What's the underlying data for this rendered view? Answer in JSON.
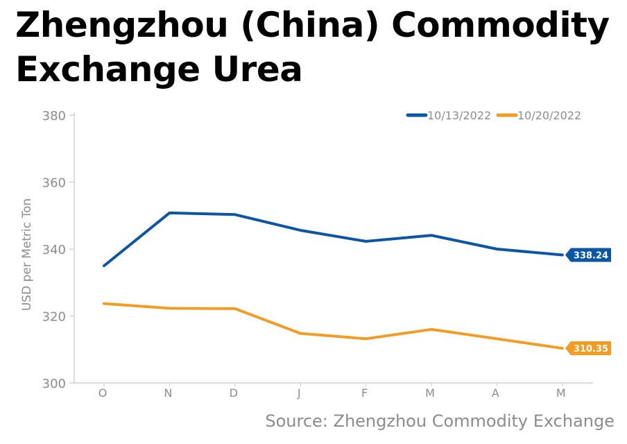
{
  "title": "Zhengzhou (China) Commodity Exchange Urea",
  "source": "Source: Zhengzhou Commodity Exchange",
  "colors": {
    "series1": "#0b56a4",
    "series2": "#f39c24",
    "axis": "#c8c8c8",
    "tick_text": "#8c8c8c"
  },
  "chart_data": {
    "type": "line",
    "title": "Zhengzhou (China) Commodity Exchange Urea",
    "xlabel": "",
    "ylabel": "USD per Metric Ton",
    "ylim": [
      300,
      380
    ],
    "yticks": [
      300,
      320,
      340,
      360,
      380
    ],
    "categories": [
      "O",
      "N",
      "D",
      "J",
      "F",
      "M",
      "A",
      "M"
    ],
    "grid": false,
    "legend_position": "top-right",
    "series": [
      {
        "name": "10/13/2022",
        "color": "#0b56a4",
        "values": [
          335,
          350.8,
          350.3,
          345.6,
          342.3,
          344.1,
          340.0,
          338.24
        ],
        "end_label": "338.24"
      },
      {
        "name": "10/20/2022",
        "color": "#f39c24",
        "values": [
          323.7,
          322.3,
          322.2,
          314.8,
          313.2,
          316.0,
          313.2,
          310.35
        ],
        "end_label": "310.35"
      }
    ]
  }
}
